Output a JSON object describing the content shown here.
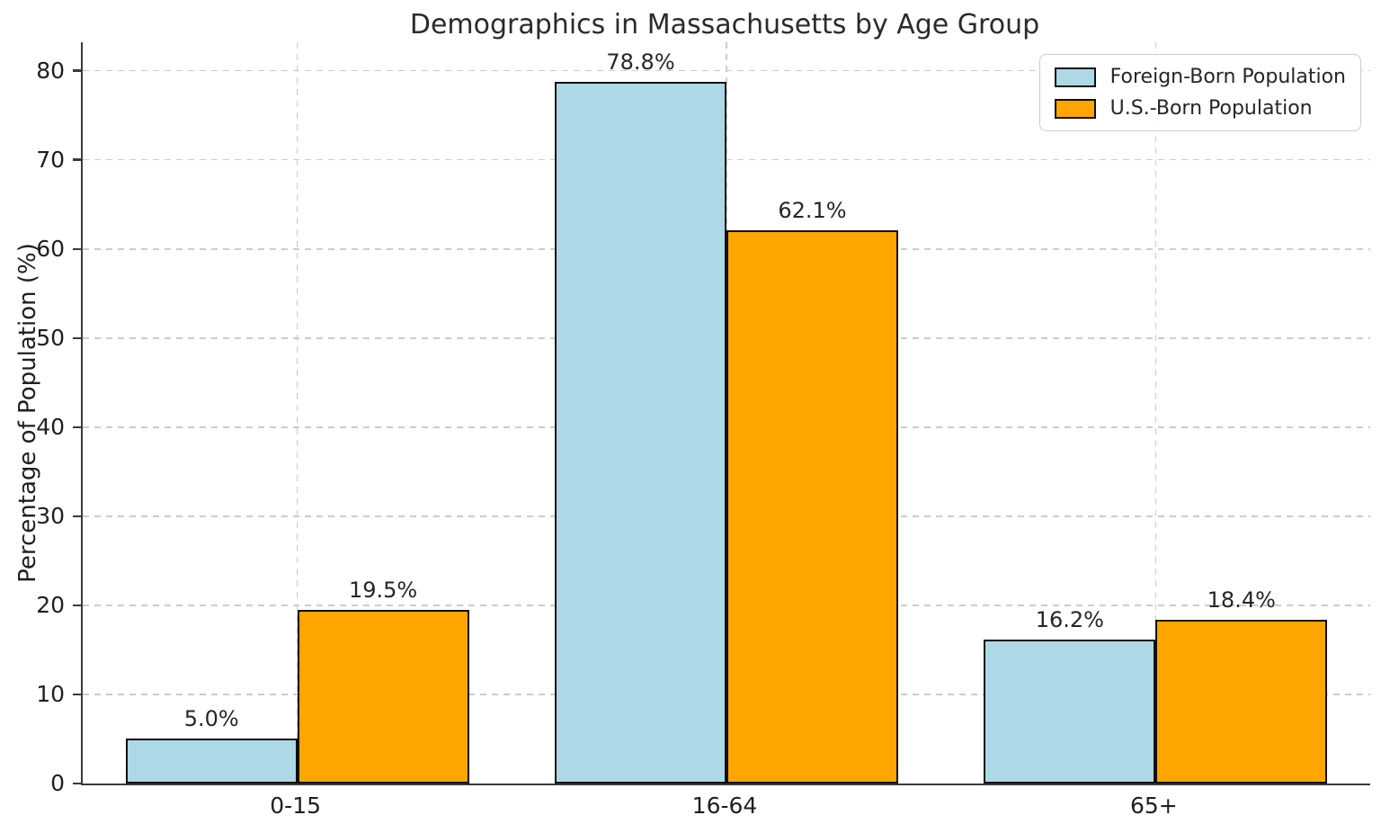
{
  "title": "Demographics in Massachusetts by Age Group",
  "chart_data": {
    "type": "bar",
    "title": "Demographics in Massachusetts by Age Group",
    "categories": [
      "0-15",
      "16-64",
      "65+"
    ],
    "series": [
      {
        "name": "Foreign-Born Population",
        "color": "#ADD8E6",
        "values": [
          5.0,
          78.8,
          16.2
        ],
        "value_labels": [
          "5.0%",
          "78.8%",
          "16.2%"
        ]
      },
      {
        "name": "U.S.-Born Population",
        "color": "#FFA500",
        "values": [
          19.5,
          62.1,
          18.4
        ],
        "value_labels": [
          "19.5%",
          "62.1%",
          "18.4%"
        ]
      }
    ],
    "xlabel": "",
    "ylabel": "Percentage of Population (%)",
    "ylim": [
      0,
      83.2
    ],
    "yticks": [
      0,
      10,
      20,
      30,
      40,
      50,
      60,
      70,
      80
    ],
    "grid": true,
    "grid_style": "dashed",
    "legend_position": "upper right",
    "colors": {
      "bar_edge": "#0f0f0f",
      "grid": "#cccccc",
      "spine": "#3a3a3a",
      "text": "#262626",
      "background": "#ffffff"
    }
  }
}
